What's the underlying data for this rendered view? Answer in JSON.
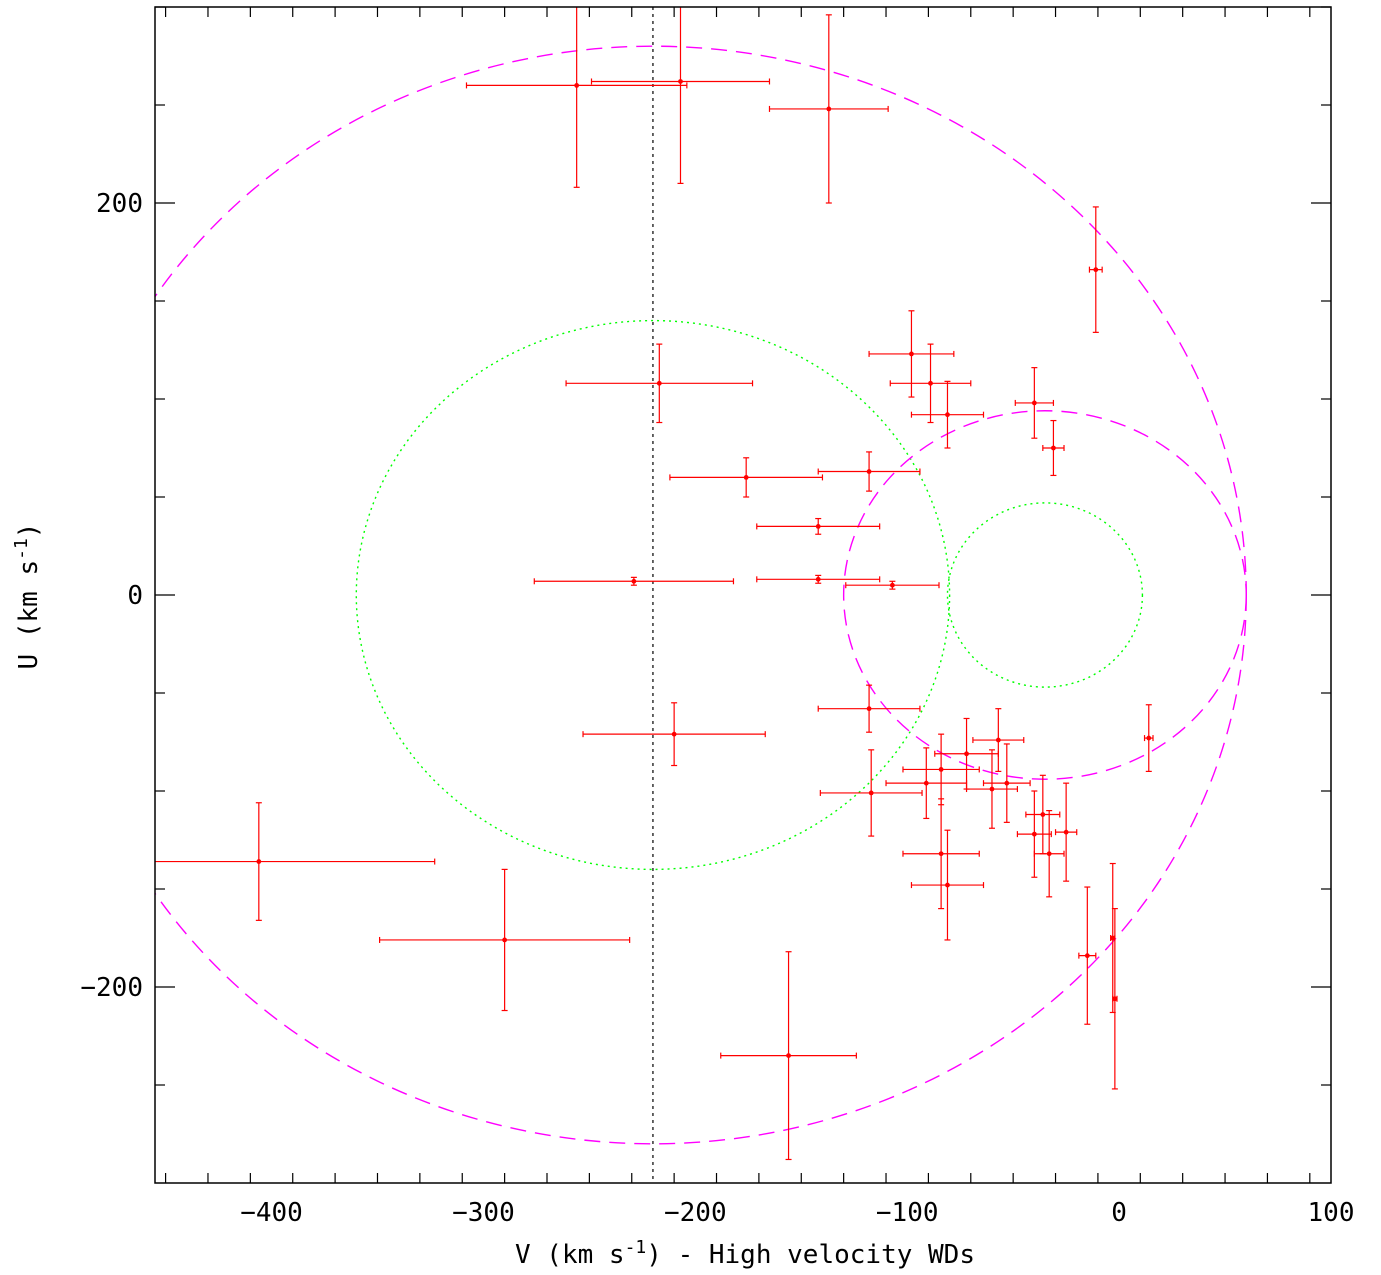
{
  "chart_data": {
    "type": "scatter",
    "xlabel": "V (km s",
    "xlabel_sup": "-1",
    "xlabel_tail": ") - High velocity WDs",
    "ylabel": "U (km s",
    "ylabel_sup": "-1",
    "ylabel_tail": ")",
    "xlim": [
      -455,
      100
    ],
    "ylim": [
      -300,
      300
    ],
    "x_ticks": [
      -400,
      -300,
      -200,
      -100,
      0,
      100
    ],
    "y_ticks": [
      -200,
      0,
      200
    ],
    "x_tick_labels": [
      "−400",
      "−300",
      "−200",
      "−100",
      "0",
      "100"
    ],
    "y_tick_labels": [
      "−200",
      "0",
      "200"
    ],
    "grid": false,
    "colors": {
      "points": "#ff0000",
      "outer_contours": "#ff00ff",
      "inner_contours": "#00ff00",
      "reference_line": "#000000"
    },
    "reference_line": {
      "orientation": "vertical",
      "x": -220,
      "style": "dotted"
    },
    "contours": [
      {
        "kind": "ellipse",
        "center": [
          -220,
          0
        ],
        "rx": 280,
        "ry": 280,
        "style": "dashed",
        "color": "#ff00ff",
        "open_left": true
      },
      {
        "kind": "ellipse",
        "center": [
          -220,
          0
        ],
        "rx": 140,
        "ry": 140,
        "style": "dotted",
        "color": "#00ff00"
      },
      {
        "kind": "ellipse",
        "center": [
          -35,
          0
        ],
        "rx": 95,
        "ry": 94,
        "style": "dashed",
        "color": "#ff00ff"
      },
      {
        "kind": "ellipse",
        "center": [
          -35,
          0
        ],
        "rx": 46,
        "ry": 47,
        "style": "dotted",
        "color": "#00ff00"
      }
    ],
    "series": [
      {
        "points": [
          {
            "x": -256,
            "y": 260,
            "xerr": 52,
            "yerr": 52
          },
          {
            "x": -207,
            "y": 262,
            "xerr": 42,
            "yerr": 52
          },
          {
            "x": -137,
            "y": 248,
            "xerr": 28,
            "yerr": 48
          },
          {
            "x": -11,
            "y": 166,
            "xerr": 3,
            "yerr": 32
          },
          {
            "x": -98,
            "y": 123,
            "xerr": 20,
            "yerr": 22
          },
          {
            "x": -89,
            "y": 108,
            "xerr": 19,
            "yerr": 20
          },
          {
            "x": -81,
            "y": 92,
            "xerr": 17,
            "yerr": 17
          },
          {
            "x": -40,
            "y": 98,
            "xerr": 9,
            "yerr": 18
          },
          {
            "x": -31,
            "y": 75,
            "xerr": 5,
            "yerr": 14
          },
          {
            "x": -217,
            "y": 108,
            "xerr": 44,
            "yerr": 20
          },
          {
            "x": -176,
            "y": 60,
            "xerr": 36,
            "yerr": 10
          },
          {
            "x": -118,
            "y": 63,
            "xerr": 24,
            "yerr": 10
          },
          {
            "x": -142,
            "y": 35,
            "xerr": 29,
            "yerr": 4
          },
          {
            "x": -229,
            "y": 7,
            "xerr": 47,
            "yerr": 2
          },
          {
            "x": -142,
            "y": 8,
            "xerr": 29,
            "yerr": 2
          },
          {
            "x": -107,
            "y": 5,
            "xerr": 22,
            "yerr": 2
          },
          {
            "x": -118,
            "y": -58,
            "xerr": 24,
            "yerr": 12
          },
          {
            "x": -210,
            "y": -71,
            "xerr": 43,
            "yerr": 16
          },
          {
            "x": -57,
            "y": -74,
            "xerr": 12,
            "yerr": 16
          },
          {
            "x": -72,
            "y": -81,
            "xerr": 15,
            "yerr": 18
          },
          {
            "x": -53,
            "y": -96,
            "xerr": 11,
            "yerr": 20
          },
          {
            "x": -84,
            "y": -89,
            "xerr": 18,
            "yerr": 18
          },
          {
            "x": -91,
            "y": -96,
            "xerr": 19,
            "yerr": 18
          },
          {
            "x": -60,
            "y": -99,
            "xerr": 12,
            "yerr": 20
          },
          {
            "x": -117,
            "y": -101,
            "xerr": 24,
            "yerr": 22
          },
          {
            "x": -36,
            "y": -112,
            "xerr": 8,
            "yerr": 20
          },
          {
            "x": -25,
            "y": -121,
            "xerr": 5,
            "yerr": 25
          },
          {
            "x": -40,
            "y": -122,
            "xerr": 8,
            "yerr": 22
          },
          {
            "x": -33,
            "y": -132,
            "xerr": 7,
            "yerr": 22
          },
          {
            "x": -84,
            "y": -132,
            "xerr": 18,
            "yerr": 28
          },
          {
            "x": -81,
            "y": -148,
            "xerr": 17,
            "yerr": 28
          },
          {
            "x": -406,
            "y": -136,
            "xerr": 83,
            "yerr": 30
          },
          {
            "x": -290,
            "y": -176,
            "xerr": 59,
            "yerr": 36
          },
          {
            "x": -15,
            "y": -184,
            "xerr": 4,
            "yerr": 35
          },
          {
            "x": -3,
            "y": -175,
            "xerr": 1,
            "yerr": 38
          },
          {
            "x": -2,
            "y": -206,
            "xerr": 1,
            "yerr": 46
          },
          {
            "x": 14,
            "y": -73,
            "xerr": 2,
            "yerr": 17
          },
          {
            "x": -156,
            "y": -235,
            "xerr": 32,
            "yerr": 53
          }
        ]
      }
    ]
  }
}
